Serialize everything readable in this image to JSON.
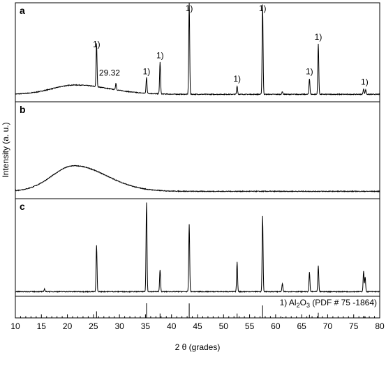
{
  "chart_data": {
    "type": "line",
    "xlabel": "2 θ (grades)",
    "ylabel": "Intensity (a. u.)",
    "xlim": [
      10,
      80
    ],
    "x_ticks": [
      10,
      15,
      20,
      25,
      30,
      35,
      40,
      45,
      50,
      55,
      60,
      65,
      70,
      75,
      80
    ],
    "panels": [
      {
        "label": "a",
        "baseline": 0.05,
        "hump": {
          "center": 21.5,
          "width": 5.2,
          "height": 0.1
        },
        "peaks": [
          {
            "x": 25.6,
            "h": 0.46
          },
          {
            "x": 29.32,
            "h": 0.07
          },
          {
            "x": 35.2,
            "h": 0.17
          },
          {
            "x": 37.8,
            "h": 0.34
          },
          {
            "x": 43.4,
            "h": 0.98
          },
          {
            "x": 52.6,
            "h": 0.09
          },
          {
            "x": 57.5,
            "h": 0.96
          },
          {
            "x": 61.3,
            "h": 0.03
          },
          {
            "x": 66.5,
            "h": 0.17
          },
          {
            "x": 68.2,
            "h": 0.54
          },
          {
            "x": 76.9,
            "h": 0.06
          },
          {
            "x": 77.3,
            "h": 0.05
          }
        ],
        "annotations": [
          {
            "x": 25.6,
            "text": "1)"
          },
          {
            "x": 29.3,
            "text": "29.32"
          },
          {
            "x": 35.2,
            "text": "1)"
          },
          {
            "x": 37.8,
            "text": "1)"
          },
          {
            "x": 43.4,
            "text": "1)"
          },
          {
            "x": 52.6,
            "text": "1)"
          },
          {
            "x": 57.5,
            "text": "1)"
          },
          {
            "x": 66.5,
            "text": "1)"
          },
          {
            "x": 68.2,
            "text": "1)"
          },
          {
            "x": 77.1,
            "text": "1)"
          }
        ]
      },
      {
        "label": "b",
        "baseline": 0.05,
        "hump": {
          "center": 21.3,
          "width": 5.0,
          "height": 0.28
        },
        "peaks": [],
        "annotations": []
      },
      {
        "label": "c",
        "baseline": 0.02,
        "hump": {
          "center": 21.0,
          "width": 5.0,
          "height": 0.0
        },
        "peaks": [
          {
            "x": 15.6,
            "h": 0.03
          },
          {
            "x": 25.6,
            "h": 0.5
          },
          {
            "x": 35.2,
            "h": 0.97
          },
          {
            "x": 37.8,
            "h": 0.24
          },
          {
            "x": 43.4,
            "h": 0.73
          },
          {
            "x": 52.6,
            "h": 0.32
          },
          {
            "x": 57.5,
            "h": 0.82
          },
          {
            "x": 61.3,
            "h": 0.09
          },
          {
            "x": 66.5,
            "h": 0.21
          },
          {
            "x": 68.2,
            "h": 0.28
          },
          {
            "x": 76.9,
            "h": 0.22
          },
          {
            "x": 77.2,
            "h": 0.16
          }
        ],
        "annotations": []
      }
    ],
    "reference": {
      "legend": "1) Al2O3 (PDF # 75 -1864)",
      "legend_prefix": "1) Al",
      "legend_sub": "2",
      "legend_mid": "O",
      "legend_sub2": "3",
      "legend_suffix": " (PDF # 75 -1864)",
      "lines": [
        {
          "x": 25.6,
          "h": 0.45
        },
        {
          "x": 35.2,
          "h": 1.0
        },
        {
          "x": 37.8,
          "h": 0.3
        },
        {
          "x": 43.4,
          "h": 0.99
        },
        {
          "x": 52.6,
          "h": 0.3
        },
        {
          "x": 57.5,
          "h": 0.85
        },
        {
          "x": 61.3,
          "h": 0.04
        },
        {
          "x": 61.4,
          "h": 0.03
        },
        {
          "x": 66.5,
          "h": 0.21
        },
        {
          "x": 68.2,
          "h": 0.35
        },
        {
          "x": 76.9,
          "h": 0.12
        },
        {
          "x": 77.2,
          "h": 0.1
        }
      ]
    }
  }
}
